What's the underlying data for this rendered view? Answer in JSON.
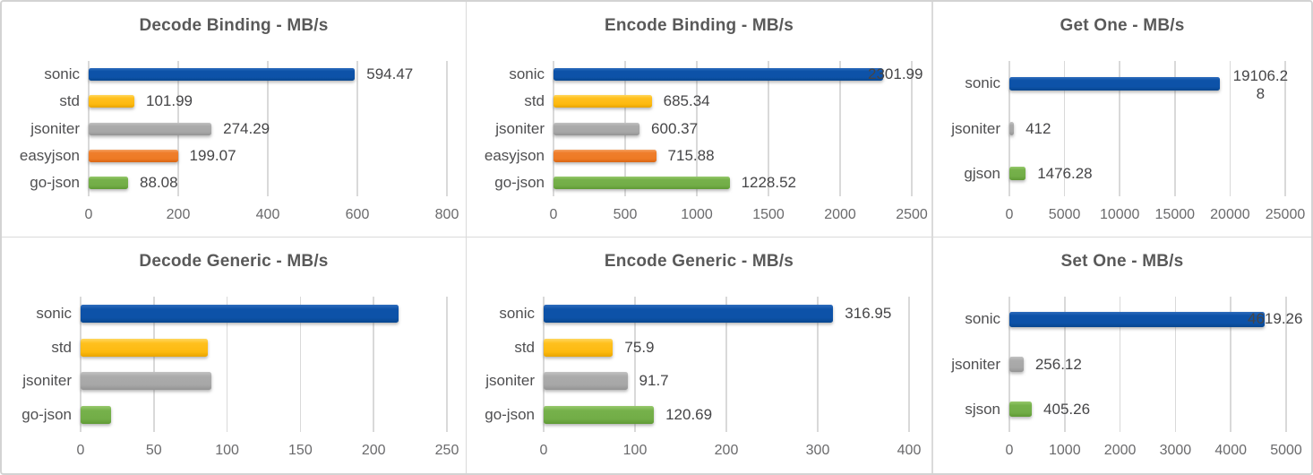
{
  "palette": {
    "blue": "#0d52a8",
    "yellow": "#ffc01e",
    "gray": "#a9a9a9",
    "orange": "#ef7e2b",
    "green": "#74ae49"
  },
  "chart_data": [
    {
      "type": "bar",
      "orientation": "horizontal",
      "title": "Decode Binding - MB/s",
      "categories": [
        "sonic",
        "std",
        "jsoniter",
        "easyjson",
        "go-json"
      ],
      "values": [
        594.47,
        101.99,
        274.29,
        199.07,
        88.08
      ],
      "value_labels": [
        "594.47",
        "101.99",
        "274.29",
        "199.07",
        "88.08"
      ],
      "series_colors": [
        "blue",
        "yellow",
        "gray",
        "orange",
        "green"
      ],
      "xlim": [
        0,
        800
      ],
      "xticks": [
        0,
        200,
        400,
        600,
        800
      ],
      "grid": true,
      "legend": false
    },
    {
      "type": "bar",
      "orientation": "horizontal",
      "title": "Encode Binding - MB/s",
      "categories": [
        "sonic",
        "std",
        "jsoniter",
        "easyjson",
        "go-json"
      ],
      "values": [
        2301.99,
        685.34,
        600.37,
        715.88,
        1228.52
      ],
      "value_labels": [
        "2301.99",
        "685.34",
        "600.37",
        "715.88",
        "1228.52"
      ],
      "series_colors": [
        "blue",
        "yellow",
        "gray",
        "orange",
        "green"
      ],
      "xlim": [
        0,
        2500
      ],
      "xticks": [
        0,
        500,
        1000,
        1500,
        2000,
        2500
      ],
      "grid": true,
      "legend": false
    },
    {
      "type": "bar",
      "orientation": "horizontal",
      "title": "Get One - MB/s",
      "categories": [
        "sonic",
        "jsoniter",
        "gjson"
      ],
      "values": [
        19106.28,
        412,
        1476.28
      ],
      "value_labels": [
        "19106.28",
        "412",
        "1476.28"
      ],
      "series_colors": [
        "blue",
        "gray",
        "green"
      ],
      "xlim": [
        0,
        25000
      ],
      "xticks": [
        0,
        5000,
        10000,
        15000,
        20000,
        25000
      ],
      "grid": true,
      "legend": false
    },
    {
      "type": "bar",
      "orientation": "horizontal",
      "title": "Decode Generic - MB/s",
      "categories": [
        "sonic",
        "std",
        "jsoniter",
        "go-json"
      ],
      "values": [
        217,
        87,
        89,
        21
      ],
      "value_labels": null,
      "series_colors": [
        "blue",
        "yellow",
        "gray",
        "green"
      ],
      "xlim": [
        0,
        250
      ],
      "xticks": [
        0,
        50,
        100,
        150,
        200,
        250
      ],
      "grid": true,
      "legend": false
    },
    {
      "type": "bar",
      "orientation": "horizontal",
      "title": "Encode Generic - MB/s",
      "categories": [
        "sonic",
        "std",
        "jsoniter",
        "go-json"
      ],
      "values": [
        316.95,
        75.9,
        91.7,
        120.69
      ],
      "value_labels": [
        "316.95",
        "75.9",
        "91.7",
        "120.69"
      ],
      "series_colors": [
        "blue",
        "yellow",
        "gray",
        "green"
      ],
      "xlim": [
        0,
        400
      ],
      "xticks": [
        0,
        100,
        200,
        300,
        400
      ],
      "grid": true,
      "legend": false
    },
    {
      "type": "bar",
      "orientation": "horizontal",
      "title": "Set One - MB/s",
      "categories": [
        "sonic",
        "jsoniter",
        "sjson"
      ],
      "values": [
        4619.26,
        256.12,
        405.26
      ],
      "value_labels": [
        "4619.26",
        "256.12",
        "405.26"
      ],
      "series_colors": [
        "blue",
        "gray",
        "green"
      ],
      "xlim": [
        0,
        5000
      ],
      "xticks": [
        0,
        1000,
        2000,
        3000,
        4000,
        5000
      ],
      "grid": true,
      "legend": false
    }
  ]
}
